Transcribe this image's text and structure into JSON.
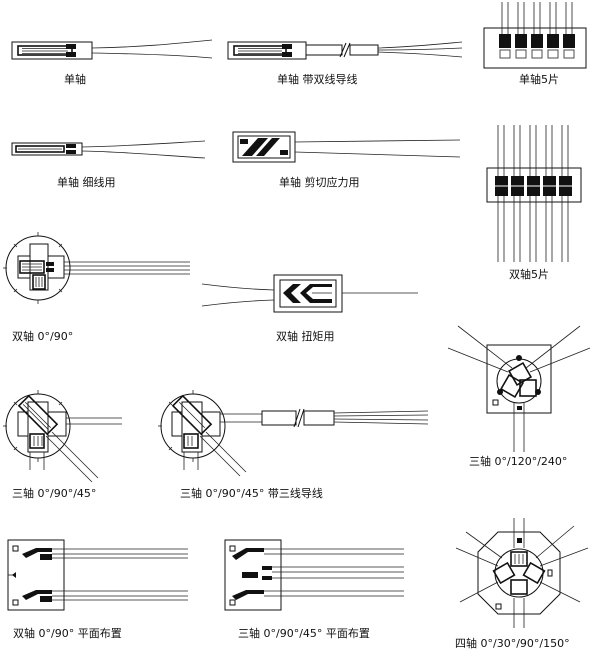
{
  "labels": {
    "uniaxial": "单轴",
    "uniaxial_three_wire": "单轴 带双线导线",
    "uniaxial_five": "单轴5片",
    "uniaxial_narrow": "单轴  细线用",
    "uniaxial_shear": "单轴  剪切应力用",
    "biaxial_five": "双轴5片",
    "biaxial_0_90": "双轴  0°/90°",
    "biaxial_torque": "双轴  扭矩用",
    "triaxial_0_120_240": "三轴  0°/120°/240°",
    "triaxial_0_90_45": "三轴  0°/90°/45°",
    "triaxial_0_90_45_wire": "三轴  0°/90°/45°  带三线导线",
    "biaxial_planar": "双轴  0°/90°  平面布置",
    "triaxial_planar": "三轴  0°/90°/45°  平面布置",
    "four_axis": "四轴  0°/30°/90°/150°"
  }
}
